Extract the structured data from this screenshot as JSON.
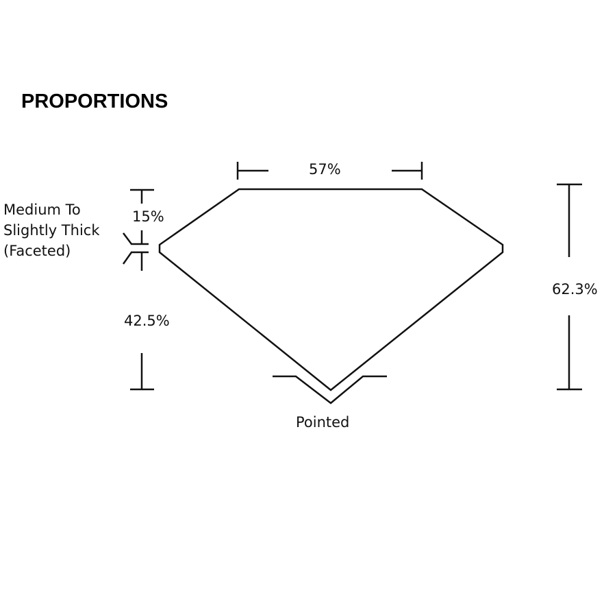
{
  "title": "PROPORTIONS",
  "labels": {
    "table": "57%",
    "crown": "15%",
    "girdle": [
      "Medium To",
      "Slightly Thick",
      "(Faceted)"
    ],
    "pavilion": "42.5%",
    "depth": "62.3%",
    "culet": "Pointed"
  }
}
